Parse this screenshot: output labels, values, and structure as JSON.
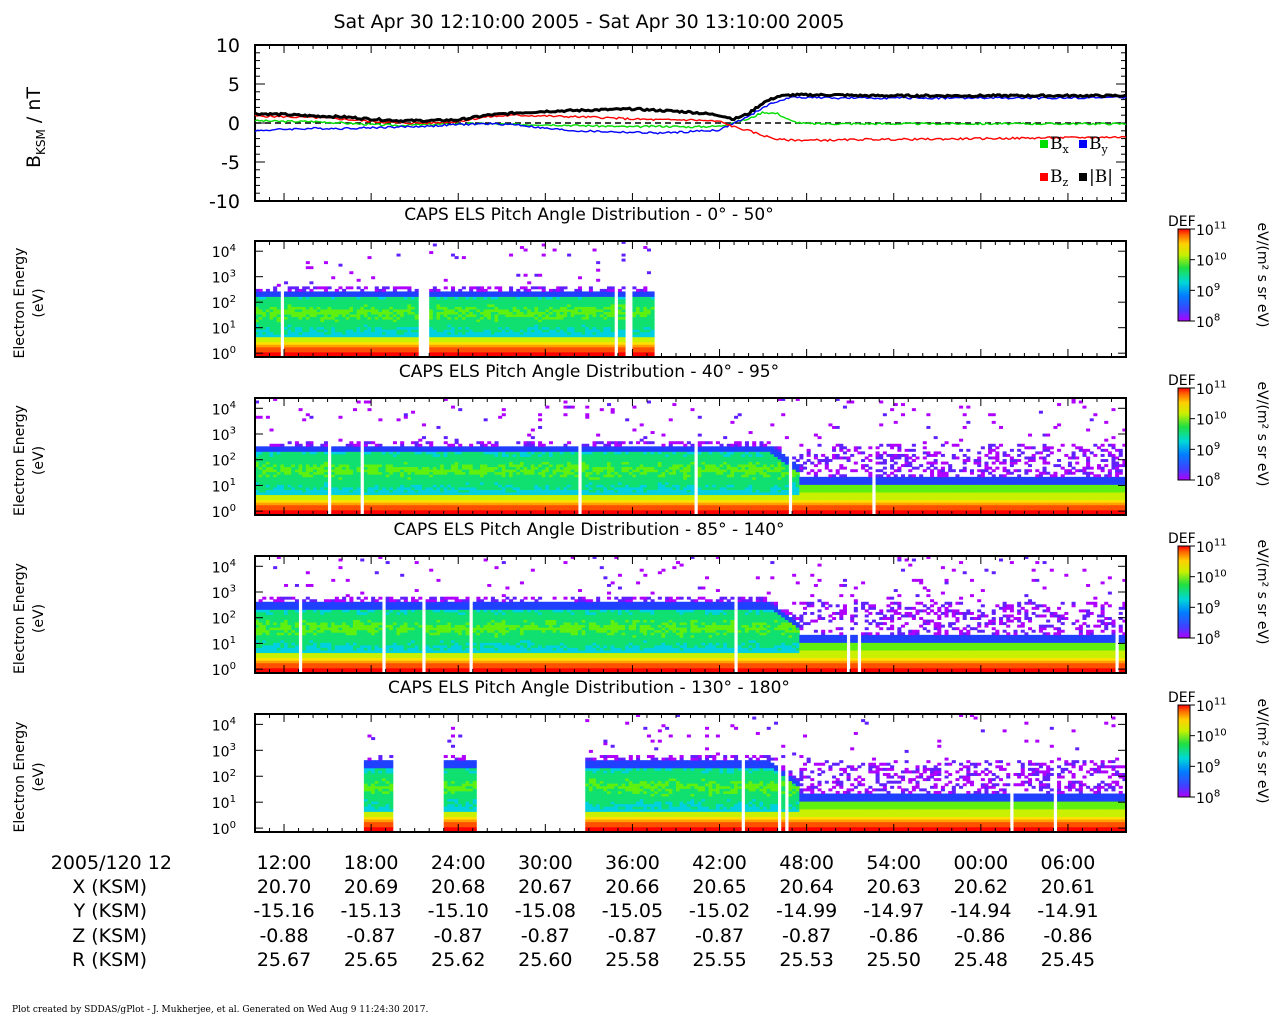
{
  "title": "Sat Apr 30 12:10:00 2005 - Sat Apr 30 13:10:00 2005",
  "footer": "Plot created by SDDAS/gPlot - J. Mukherjee, et al.  Generated on Wed Aug 9 11:24:30 2017.",
  "chart_data": [
    {
      "type": "line",
      "ylabel_main": "B",
      "ylabel_sub": "KSM",
      "ylabel_unit": " / nT",
      "ylim": [
        -10,
        10
      ],
      "yticks": [
        "10",
        "5",
        "0",
        "-5",
        "-10"
      ],
      "x": [
        0,
        2,
        4,
        6,
        8,
        10,
        12,
        14,
        16,
        18,
        20,
        22,
        24,
        26,
        28,
        30,
        32,
        33,
        34,
        35,
        36,
        37,
        38,
        40,
        42,
        45,
        50,
        55,
        60
      ],
      "series": [
        {
          "name": "B",
          "name_sub": "x",
          "color": "#00dd00",
          "values": [
            0.3,
            0.2,
            0.2,
            0.0,
            -0.2,
            -0.3,
            -0.2,
            -0.1,
            -0.1,
            -0.2,
            -0.2,
            -0.3,
            -0.4,
            -0.5,
            -0.4,
            -0.5,
            -0.4,
            0.1,
            0.5,
            1.4,
            1.2,
            0.2,
            -0.1,
            -0.1,
            -0.1,
            -0.1,
            -0.1,
            -0.1,
            -0.1
          ]
        },
        {
          "name": "B",
          "name_sub": "y",
          "color": "#0000ff",
          "values": [
            -1.0,
            -0.8,
            -0.7,
            -0.7,
            -0.6,
            -0.5,
            -0.4,
            -0.2,
            -0.1,
            -0.2,
            -0.7,
            -1.0,
            -1.1,
            -1.2,
            -1.3,
            -1.1,
            -0.9,
            0.0,
            0.8,
            2.0,
            2.8,
            3.3,
            3.3,
            3.2,
            3.2,
            3.2,
            3.2,
            3.2,
            3.3
          ]
        },
        {
          "name": "B",
          "name_sub": "z",
          "color": "#ff0000",
          "values": [
            0.9,
            0.8,
            0.7,
            0.5,
            0.2,
            0.0,
            0.0,
            0.2,
            0.8,
            1.0,
            0.9,
            0.8,
            0.7,
            0.5,
            0.4,
            0.4,
            0.2,
            -0.5,
            -1.0,
            -1.6,
            -2.1,
            -2.2,
            -2.2,
            -2.2,
            -2.1,
            -2.1,
            -2.0,
            -1.9,
            -1.8
          ]
        },
        {
          "name": "|B|",
          "name_sub": "",
          "color": "#000000",
          "values": [
            1.2,
            1.1,
            0.9,
            0.8,
            0.5,
            0.3,
            0.3,
            0.4,
            1.0,
            1.3,
            1.5,
            1.6,
            1.7,
            1.8,
            1.6,
            1.4,
            1.0,
            0.5,
            1.2,
            2.6,
            3.4,
            3.6,
            3.6,
            3.6,
            3.5,
            3.5,
            3.5,
            3.5,
            3.5
          ]
        }
      ]
    },
    {
      "type": "heatmap",
      "title": "CAPS ELS Pitch Angle Distribution - 0° - 50°",
      "ylabel": [
        "Electron Energy",
        "(eV)"
      ],
      "yticks": [
        {
          "b": "10",
          "e": "4"
        },
        {
          "b": "10",
          "e": "3"
        },
        {
          "b": "10",
          "e": "2"
        },
        {
          "b": "10",
          "e": "1"
        },
        {
          "b": "10",
          "e": "0"
        }
      ],
      "data_intervals_min": [
        [
          0,
          11.3
        ],
        [
          11.9,
          24.7
        ],
        [
          24.9,
          25.6
        ],
        [
          25.9,
          27.8
        ]
      ],
      "upper_energy_log": 2.45,
      "colorbar": {
        "label": "DEF",
        "unit": "eV/(m² s sr eV)",
        "ticks": [
          {
            "b": "10",
            "e": "11"
          },
          {
            "b": "10",
            "e": "10"
          },
          {
            "b": "10",
            "e": "9"
          },
          {
            "b": "10",
            "e": "8"
          }
        ]
      }
    },
    {
      "type": "heatmap",
      "title": "CAPS ELS Pitch Angle Distribution - 40° - 95°",
      "ylabel": [
        "Electron Energy",
        "(eV)"
      ],
      "yticks": [
        {
          "b": "10",
          "e": "4"
        },
        {
          "b": "10",
          "e": "3"
        },
        {
          "b": "10",
          "e": "2"
        },
        {
          "b": "10",
          "e": "1"
        },
        {
          "b": "10",
          "e": "0"
        }
      ],
      "data_intervals_min": [
        [
          0,
          60
        ]
      ],
      "upper_energy_log": 2.55,
      "colorbar": {
        "label": "DEF",
        "unit": "eV/(m² s sr eV)",
        "ticks": [
          {
            "b": "10",
            "e": "11"
          },
          {
            "b": "10",
            "e": "10"
          },
          {
            "b": "10",
            "e": "9"
          },
          {
            "b": "10",
            "e": "8"
          }
        ]
      }
    },
    {
      "type": "heatmap",
      "title": "CAPS ELS Pitch Angle Distribution - 85° - 140°",
      "ylabel": [
        "Electron Energy",
        "(eV)"
      ],
      "yticks": [
        {
          "b": "10",
          "e": "4"
        },
        {
          "b": "10",
          "e": "3"
        },
        {
          "b": "10",
          "e": "2"
        },
        {
          "b": "10",
          "e": "1"
        },
        {
          "b": "10",
          "e": "0"
        }
      ],
      "data_intervals_min": [
        [
          0,
          60
        ]
      ],
      "upper_energy_log": 2.6,
      "colorbar": {
        "label": "DEF",
        "unit": "eV/(m² s sr eV)",
        "ticks": [
          {
            "b": "10",
            "e": "11"
          },
          {
            "b": "10",
            "e": "10"
          },
          {
            "b": "10",
            "e": "9"
          },
          {
            "b": "10",
            "e": "8"
          }
        ]
      }
    },
    {
      "type": "heatmap",
      "title": "CAPS ELS Pitch Angle Distribution - 130° - 180°",
      "ylabel": [
        "Electron Energy",
        "(eV)"
      ],
      "yticks": [
        {
          "b": "10",
          "e": "4"
        },
        {
          "b": "10",
          "e": "3"
        },
        {
          "b": "10",
          "e": "2"
        },
        {
          "b": "10",
          "e": "1"
        },
        {
          "b": "10",
          "e": "0"
        }
      ],
      "data_intervals_min": [
        [
          7.5,
          9.4
        ],
        [
          13.1,
          15.5
        ],
        [
          21.9,
          22.1
        ],
        [
          22.8,
          60
        ]
      ],
      "upper_energy_log": 2.6,
      "colorbar": {
        "label": "DEF",
        "unit": "eV/(m² s sr eV)",
        "ticks": [
          {
            "b": "10",
            "e": "11"
          },
          {
            "b": "10",
            "e": "10"
          },
          {
            "b": "10",
            "e": "9"
          },
          {
            "b": "10",
            "e": "8"
          }
        ]
      }
    }
  ],
  "x_axis": {
    "row_labels": [
      "2005/120 12",
      "X (KSM)",
      "Y (KSM)",
      "Z (KSM)",
      "R (KSM)"
    ],
    "tick_minutes": [
      2,
      8,
      14,
      20,
      26,
      32,
      38,
      44,
      50,
      56
    ],
    "columns": [
      [
        "12:00",
        "20.70",
        "-15.16",
        "-0.88",
        "25.67"
      ],
      [
        "18:00",
        "20.69",
        "-15.13",
        "-0.87",
        "25.65"
      ],
      [
        "24:00",
        "20.68",
        "-15.10",
        "-0.87",
        "25.62"
      ],
      [
        "30:00",
        "20.67",
        "-15.08",
        "-0.87",
        "25.60"
      ],
      [
        "36:00",
        "20.66",
        "-15.05",
        "-0.87",
        "25.58"
      ],
      [
        "42:00",
        "20.65",
        "-15.02",
        "-0.87",
        "25.55"
      ],
      [
        "48:00",
        "20.64",
        "-14.99",
        "-0.87",
        "25.53"
      ],
      [
        "54:00",
        "20.63",
        "-14.97",
        "-0.86",
        "25.50"
      ],
      [
        "00:00",
        "20.62",
        "-14.94",
        "-0.86",
        "25.48"
      ],
      [
        "06:00",
        "20.61",
        "-14.91",
        "-0.86",
        "25.45"
      ]
    ]
  }
}
